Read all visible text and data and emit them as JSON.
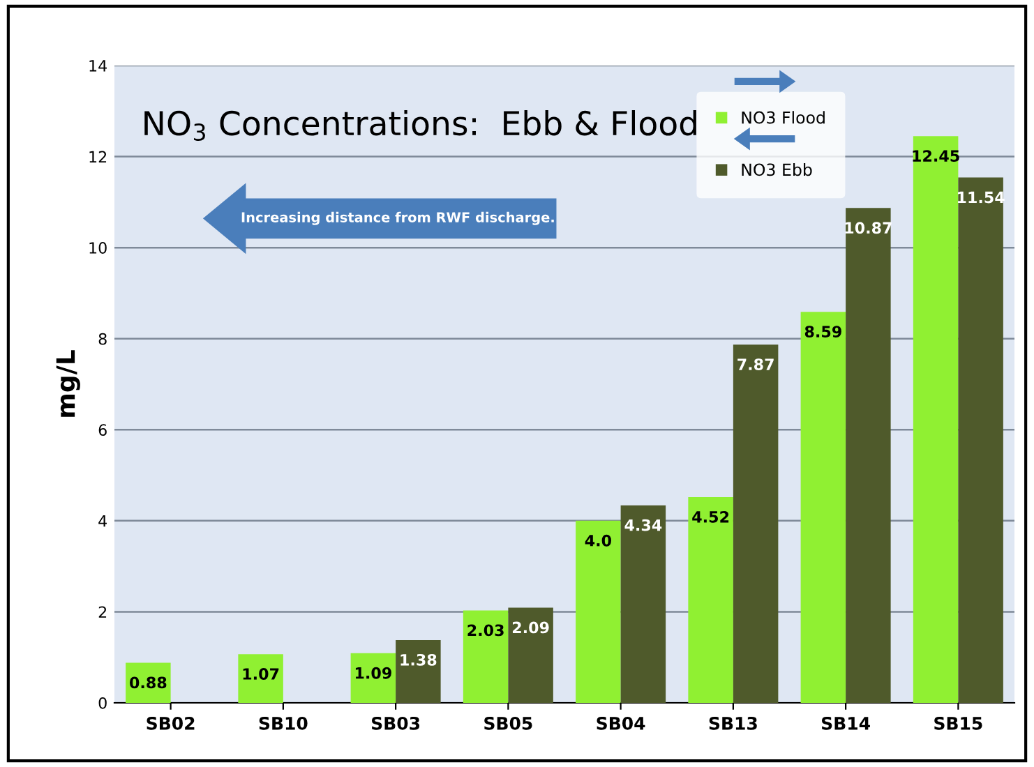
{
  "chart_data": {
    "type": "bar",
    "title": "NO$_{3}$ Concentrations:  Ebb & Flood",
    "ylabel": "mg/L",
    "categories": [
      "SB02",
      "SB10",
      "SB03",
      "SB05",
      "SB04",
      "SB13",
      "SB14",
      "SB15"
    ],
    "series": [
      {
        "name": "NO3 Flood",
        "color": "#90f032",
        "values": [
          0.88,
          1.07,
          1.09,
          2.03,
          4.0,
          4.52,
          8.59,
          12.45
        ],
        "value_labels": [
          "0.88",
          "1.07",
          "1.09",
          "2.03",
          "4.0",
          "4.52",
          "8.59",
          "12.45"
        ]
      },
      {
        "name": "NO3 Ebb",
        "color": "#4f5a2b",
        "values": [
          null,
          null,
          1.38,
          2.09,
          4.34,
          7.87,
          10.87,
          11.54
        ],
        "value_labels": [
          null,
          null,
          "1.38",
          "2.09",
          "4.34",
          "7.87",
          "10.87",
          "11.54"
        ]
      }
    ],
    "annotations": [
      "Increasing distance from RWF discharge."
    ],
    "ylim": [
      0,
      14
    ],
    "yticks": [
      0,
      2,
      4,
      6,
      8,
      10,
      12,
      14
    ],
    "grid": "y",
    "legend": "top right"
  }
}
